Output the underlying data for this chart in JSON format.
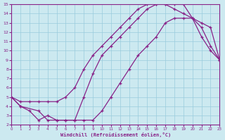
{
  "xlabel": "Windchill (Refroidissement éolien,°C)",
  "xlim": [
    0,
    23
  ],
  "ylim": [
    2,
    15
  ],
  "xticks": [
    0,
    1,
    2,
    3,
    4,
    5,
    6,
    7,
    8,
    9,
    10,
    11,
    12,
    13,
    14,
    15,
    16,
    17,
    18,
    19,
    20,
    21,
    22,
    23
  ],
  "yticks": [
    2,
    3,
    4,
    5,
    6,
    7,
    8,
    9,
    10,
    11,
    12,
    13,
    14,
    15
  ],
  "bg_color": "#cce9f0",
  "line_color": "#882288",
  "grid_color": "#99ccdd",
  "line1_x": [
    0,
    1,
    2,
    3,
    4,
    5,
    6,
    7,
    8,
    9,
    10,
    11,
    12,
    13,
    14,
    15,
    16,
    17,
    18,
    19,
    20,
    21,
    22,
    23
  ],
  "line1_y": [
    5.0,
    4.5,
    4.5,
    4.5,
    4.5,
    4.5,
    5.0,
    6.0,
    8.0,
    9.5,
    10.5,
    11.5,
    12.5,
    13.5,
    14.5,
    15.0,
    15.0,
    15.0,
    14.5,
    14.0,
    13.5,
    11.5,
    10.0,
    9.0
  ],
  "line2_x": [
    0,
    1,
    3,
    4,
    5,
    6,
    7,
    8,
    9,
    10,
    11,
    12,
    13,
    14,
    15,
    16,
    17,
    18,
    19,
    20,
    21,
    22,
    23
  ],
  "line2_y": [
    5.0,
    4.0,
    3.5,
    2.5,
    2.5,
    2.5,
    2.5,
    5.0,
    7.5,
    9.5,
    10.5,
    11.5,
    12.5,
    13.5,
    14.5,
    15.0,
    15.0,
    15.0,
    15.0,
    13.5,
    12.5,
    10.5,
    9.0
  ],
  "line3_x": [
    0,
    1,
    2,
    3,
    4,
    5,
    6,
    7,
    8,
    9,
    10,
    11,
    12,
    13,
    14,
    15,
    16,
    17,
    18,
    19,
    20,
    21,
    22,
    23
  ],
  "line3_y": [
    5.0,
    4.0,
    3.5,
    2.5,
    3.0,
    2.5,
    2.5,
    2.5,
    2.5,
    2.5,
    3.5,
    5.0,
    6.5,
    8.0,
    9.5,
    10.5,
    11.5,
    13.0,
    13.5,
    13.5,
    13.5,
    13.0,
    12.5,
    9.0
  ]
}
